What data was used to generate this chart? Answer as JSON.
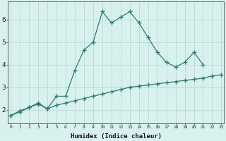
{
  "xlabel": "Humidex (Indice chaleur)",
  "x_values": [
    0,
    1,
    2,
    3,
    4,
    5,
    6,
    7,
    8,
    9,
    10,
    11,
    12,
    13,
    14,
    15,
    16,
    17,
    18,
    19,
    20,
    21,
    22,
    23
  ],
  "line1_y": [
    1.75,
    1.9,
    2.1,
    2.3,
    2.05,
    2.6,
    2.6,
    3.75,
    4.65,
    5.0,
    6.35,
    5.85,
    6.1,
    6.35,
    5.85,
    5.2,
    4.55,
    4.1,
    3.9,
    4.1,
    4.55,
    4.0,
    null,
    null
  ],
  "line2_y": [
    1.75,
    1.95,
    2.1,
    2.25,
    2.05,
    2.2,
    2.3,
    2.4,
    2.5,
    2.6,
    2.7,
    2.8,
    2.9,
    3.0,
    3.05,
    3.1,
    3.15,
    3.2,
    3.25,
    3.3,
    3.35,
    3.4,
    3.5,
    3.55
  ],
  "line_color": "#2e7d6e",
  "bg_color": "#d8f0ee",
  "grid_color": "#b8dcd8",
  "ylim": [
    1.4,
    6.8
  ],
  "xlim": [
    -0.3,
    23.3
  ],
  "yticks": [
    2,
    3,
    4,
    5,
    6
  ],
  "xtick_labels": [
    "0",
    "1",
    "2",
    "3",
    "4",
    "5",
    "6",
    "7",
    "8",
    "9",
    "10",
    "11",
    "12",
    "13",
    "14",
    "15",
    "16",
    "17",
    "18",
    "19",
    "20",
    "21",
    "22",
    "23"
  ]
}
